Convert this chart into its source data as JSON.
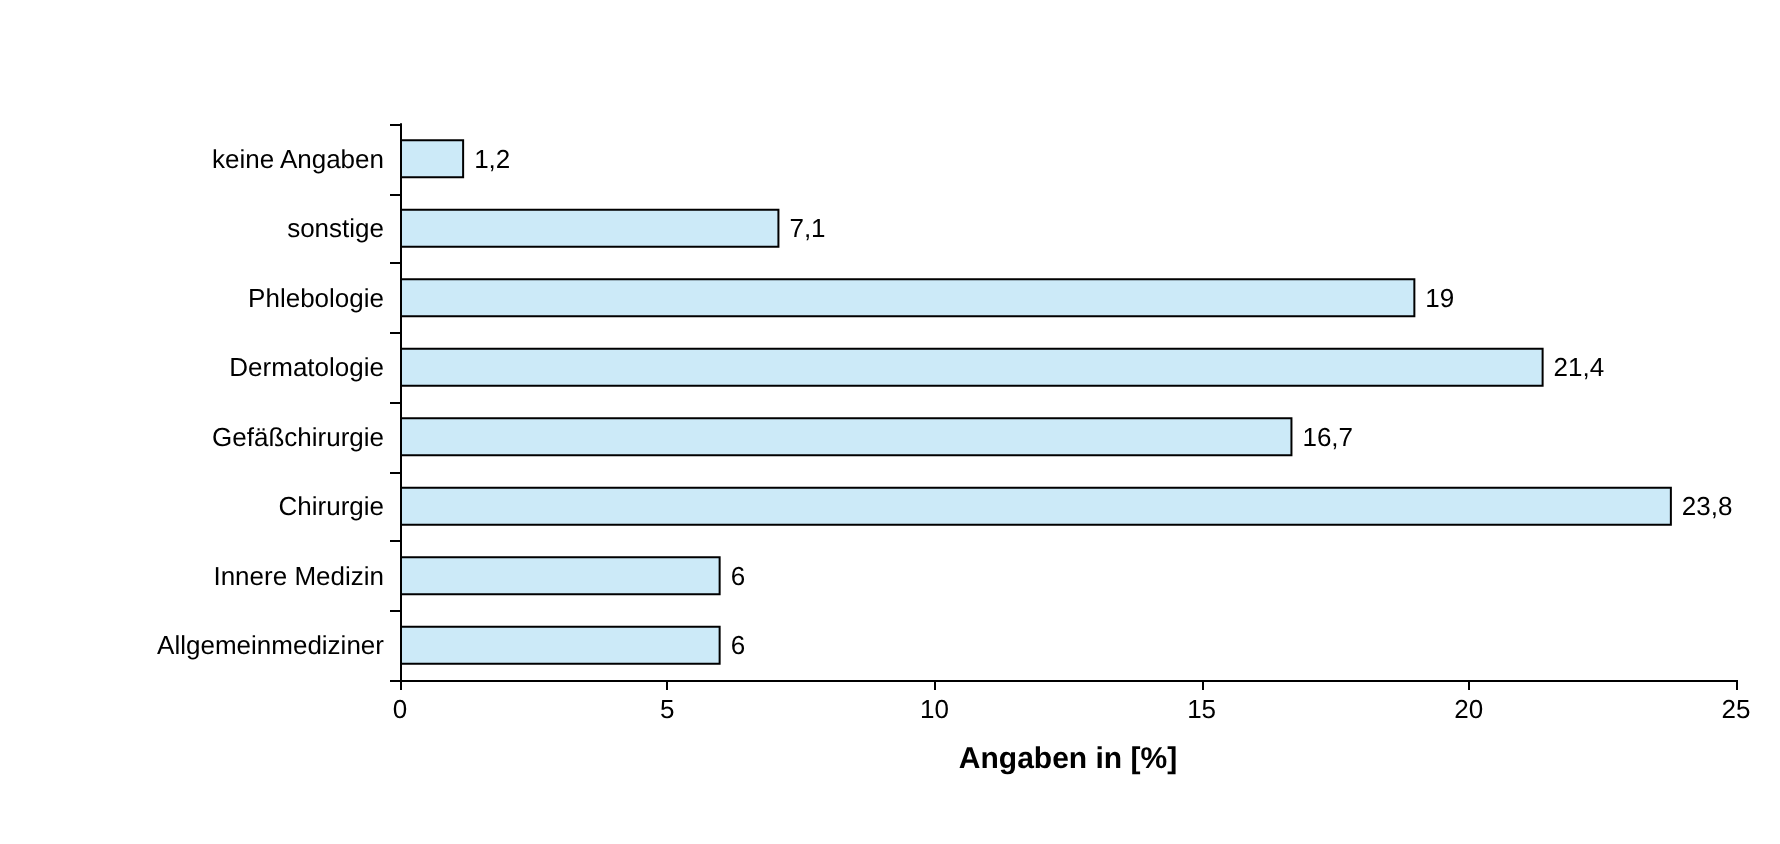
{
  "chart_data": {
    "type": "bar",
    "orientation": "horizontal",
    "xlabel": "Angaben in [%]",
    "categories": [
      "keine Angaben",
      "sonstige",
      "Phlebologie",
      "Dermatologie",
      "Gefäßchirurgie",
      "Chirurgie",
      "Innere Medizin",
      "Allgemeinmediziner"
    ],
    "values": [
      1.2,
      7.1,
      19,
      21.4,
      16.7,
      23.8,
      6,
      6
    ],
    "value_labels": [
      "1,2",
      "7,1",
      "19",
      "21,4",
      "16,7",
      "23,8",
      "6",
      "6"
    ],
    "color": "#cceaf8",
    "xlim": [
      0,
      25
    ],
    "xticks": [
      0,
      5,
      10,
      15,
      20,
      25
    ]
  }
}
